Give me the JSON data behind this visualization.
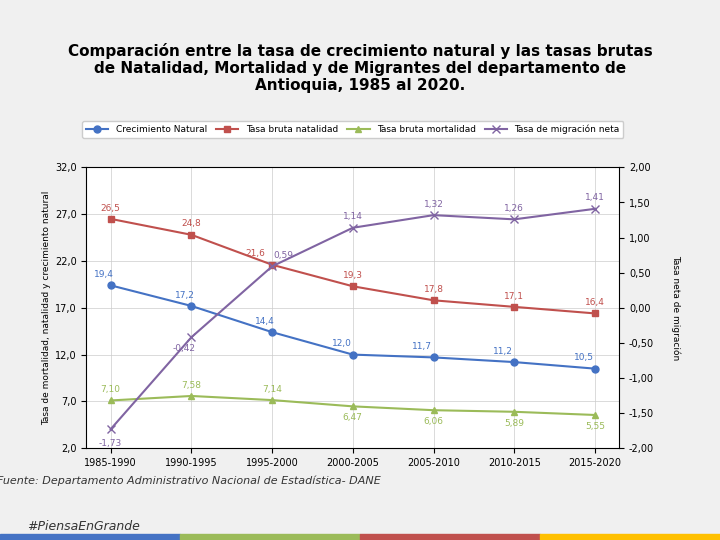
{
  "title_line1": "Comparación entre la tasa de crecimiento natural y las tasas brutas",
  "title_line2": "de Natalidad, Mortalidad y de Migrantes del departamento de",
  "title_line3": "Antioquia, 1985 al 2020.",
  "x_labels": [
    "1985-1990",
    "1990-1995",
    "1995-2000",
    "2000-2005",
    "2005-2010",
    "2010-2015",
    "2015-2020"
  ],
  "crecimiento_natural": [
    19.4,
    17.2,
    14.4,
    12.0,
    11.7,
    11.2,
    10.5
  ],
  "tasa_natalidad": [
    26.5,
    24.8,
    21.6,
    19.3,
    17.8,
    17.1,
    16.4
  ],
  "tasa_mortalidad": [
    7.1,
    7.58,
    7.14,
    6.47,
    6.06,
    5.89,
    5.55
  ],
  "tasa_migracion": [
    -1.73,
    -0.42,
    0.59,
    1.14,
    1.32,
    1.26,
    1.41
  ],
  "crecimiento_natural_labels": [
    "19,4",
    "17,2",
    "14,4",
    "12,0",
    "11,7",
    "11,2",
    "10,5"
  ],
  "tasa_natalidad_labels": [
    "26,5",
    "24,8",
    "21,6",
    "19,3",
    "17,8",
    "17,1",
    "16,4"
  ],
  "tasa_mortalidad_labels": [
    "7,10",
    "7,58",
    "7,14",
    "6,47",
    "6,06",
    "5,89",
    "5,55"
  ],
  "tasa_migracion_labels": [
    "-1,73",
    "-0,42",
    "0,59",
    "1,14",
    "1,32",
    "1,26",
    "1,41"
  ],
  "color_crecimiento": "#4472C4",
  "color_natalidad": "#C0504D",
  "color_mortalidad": "#9BBB59",
  "color_migracion": "#8064A2",
  "ylabel_left": "Tasa de mortalidad, natalidad y crecimiento natural",
  "ylabel_right": "Tasa neta de migración",
  "source_text": "Fuente: Departamento Administrativo Nacional de Estadística- DANE",
  "hashtag_text": "#PiensaEnGrande",
  "ylim_left": [
    2.0,
    32.0
  ],
  "ylim_right": [
    -2.0,
    2.0
  ],
  "yticks_left": [
    2.0,
    7.0,
    12.0,
    17.0,
    22.0,
    27.0,
    32.0
  ],
  "yticks_right": [
    -2.0,
    -1.5,
    -1.0,
    -0.5,
    0.0,
    0.5,
    1.0,
    1.5,
    2.0
  ],
  "background_color": "#FFFFFF",
  "legend_labels": [
    "Crecimiento Natural",
    "Tasa bruta natalidad",
    "Tasa bruta mortalidad",
    "Tasa de migración neta"
  ]
}
